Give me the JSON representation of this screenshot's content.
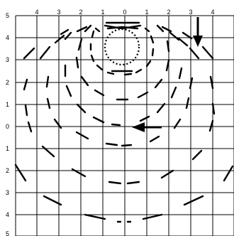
{
  "chart_data": {
    "type": "vector-field-diagram",
    "x_ticks": [
      "4",
      "3",
      "2",
      "1",
      "0",
      "1",
      "2",
      "3",
      "4"
    ],
    "y_ticks": [
      "5",
      "4",
      "3",
      "2",
      "1",
      "0",
      "1",
      "2",
      "3",
      "4",
      "5"
    ],
    "xlim": [
      -5,
      5
    ],
    "ylim": [
      -5,
      5
    ],
    "grid": true,
    "arrows": [
      {
        "name": "down-arrow",
        "direction": "down"
      },
      {
        "name": "left-arrow",
        "direction": "left"
      }
    ]
  }
}
